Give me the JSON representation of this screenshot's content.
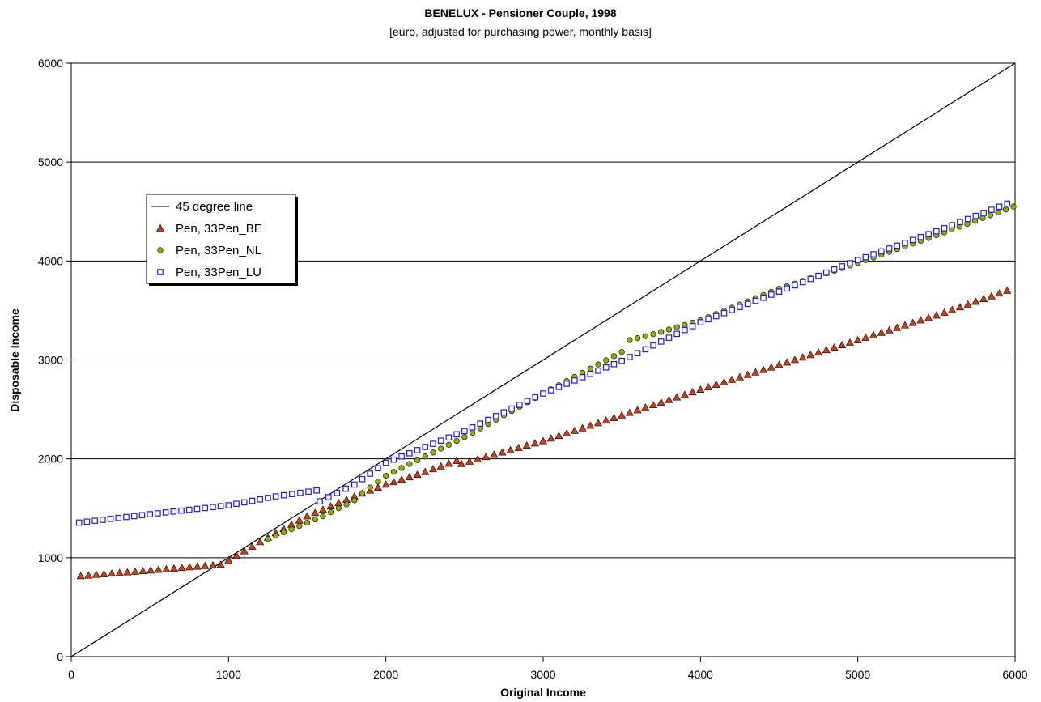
{
  "chart_data": {
    "type": "scatter",
    "title": "BENELUX - Pensioner Couple, 1998",
    "subtitle": "[euro, adjusted for purchasing power, monthly basis]",
    "xlabel": "Original Income",
    "ylabel": "Disposable  Income",
    "xlim": [
      0,
      6000
    ],
    "ylim": [
      0,
      6000
    ],
    "xticks": [
      "0",
      "1000",
      "2000",
      "3000",
      "4000",
      "5000",
      "6000"
    ],
    "yticks": [
      "0",
      "1000",
      "2000",
      "3000",
      "4000",
      "5000",
      "6000"
    ],
    "grid": "horizontal",
    "legend_position": "upper-left",
    "reference_line": {
      "name": "45 degree line",
      "points": [
        [
          0,
          0
        ],
        [
          6000,
          6000
        ]
      ],
      "color": "#000000"
    },
    "series": [
      {
        "name": "Pen, 33Pen_BE",
        "marker": "triangle",
        "color": "#c8401a",
        "points": [
          [
            60,
            815
          ],
          [
            950,
            930
          ],
          [
            1000,
            975
          ],
          [
            1300,
            1250
          ],
          [
            1500,
            1420
          ],
          [
            1800,
            1620
          ],
          [
            2000,
            1740
          ],
          [
            2200,
            1840
          ],
          [
            2450,
            1980
          ],
          [
            2480,
            1950
          ],
          [
            3000,
            2180
          ],
          [
            3500,
            2440
          ],
          [
            4000,
            2700
          ],
          [
            4500,
            2950
          ],
          [
            5000,
            3200
          ],
          [
            5500,
            3450
          ],
          [
            5950,
            3700
          ]
        ]
      },
      {
        "name": "Pen, 33Pen_NL",
        "marker": "circle",
        "color": "#8fb000",
        "points": [
          [
            1250,
            1190
          ],
          [
            1600,
            1420
          ],
          [
            1800,
            1580
          ],
          [
            1850,
            1650
          ],
          [
            2000,
            1830
          ],
          [
            2500,
            2220
          ],
          [
            3000,
            2660
          ],
          [
            3500,
            3080
          ],
          [
            3550,
            3200
          ],
          [
            3700,
            3260
          ],
          [
            4000,
            3400
          ],
          [
            4500,
            3720
          ],
          [
            5000,
            3980
          ],
          [
            5500,
            4260
          ],
          [
            5990,
            4550
          ]
        ]
      },
      {
        "name": "Pen, 33Pen_LU",
        "marker": "square",
        "color": "#1a1aee",
        "points": [
          [
            50,
            1355
          ],
          [
            500,
            1440
          ],
          [
            1000,
            1530
          ],
          [
            1300,
            1620
          ],
          [
            1560,
            1680
          ],
          [
            1580,
            1570
          ],
          [
            1800,
            1740
          ],
          [
            2000,
            1960
          ],
          [
            2500,
            2280
          ],
          [
            3000,
            2660
          ],
          [
            3500,
            2990
          ],
          [
            4000,
            3380
          ],
          [
            4500,
            3690
          ],
          [
            5000,
            4010
          ],
          [
            5500,
            4300
          ],
          [
            5950,
            4580
          ]
        ]
      }
    ]
  }
}
